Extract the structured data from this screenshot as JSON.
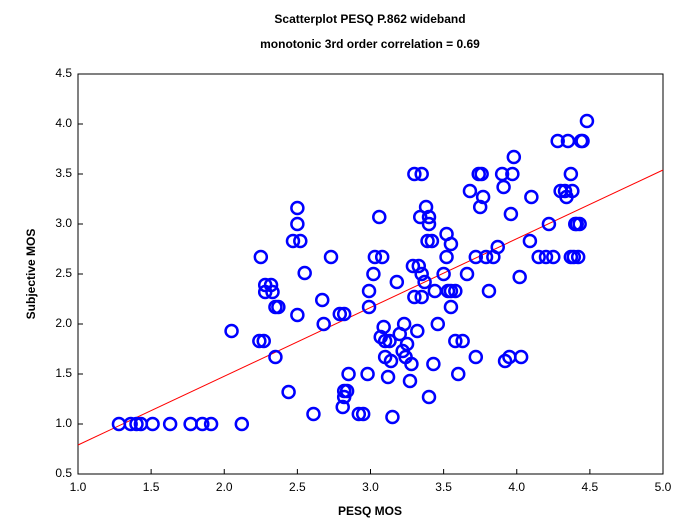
{
  "chart_data": {
    "type": "scatter",
    "title": "Scatterplot PESQ P.862 wideband",
    "subtitle": "monotonic 3rd order correlation = 0.69",
    "x_label": "PESQ  MOS",
    "y_label": "Subjective MOS",
    "color": "#0000ff",
    "x": [
      1.28,
      1.36,
      1.4,
      1.43,
      1.51,
      1.63,
      1.77,
      1.85,
      1.91,
      2.12,
      2.05,
      2.24,
      2.27,
      2.35,
      2.44,
      2.5,
      2.28,
      2.32,
      2.28,
      2.33,
      2.35,
      2.37,
      2.25,
      2.47,
      2.52,
      2.5,
      2.5,
      2.55,
      2.67,
      2.61,
      2.68,
      2.73,
      2.79,
      2.82,
      2.81,
      2.82,
      2.82,
      2.84,
      2.85,
      2.92,
      2.95,
      2.98,
      2.99,
      2.99,
      3.02,
      3.03,
      3.06,
      3.08,
      3.07,
      3.09,
      3.1,
      3.1,
      3.12,
      3.13,
      3.14,
      3.15,
      3.18,
      3.2,
      3.22,
      3.23,
      3.24,
      3.25,
      3.27,
      3.28,
      3.29,
      3.3,
      3.3,
      3.32,
      3.33,
      3.34,
      3.35,
      3.35,
      3.35,
      3.37,
      3.38,
      3.39,
      3.4,
      3.4,
      3.4,
      3.42,
      3.43,
      3.44,
      3.46,
      3.5,
      3.52,
      3.52,
      3.53,
      3.55,
      3.55,
      3.55,
      3.58,
      3.58,
      3.6,
      3.63,
      3.66,
      3.68,
      3.72,
      3.72,
      3.74,
      3.75,
      3.76,
      3.77,
      3.79,
      3.81,
      3.84,
      3.87,
      3.9,
      3.91,
      3.92,
      3.95,
      3.96,
      3.97,
      3.98,
      4.02,
      4.03,
      4.09,
      4.1,
      4.15,
      4.2,
      4.22,
      4.25,
      4.28,
      4.3,
      4.33,
      4.34,
      4.35,
      4.37,
      4.37,
      4.38,
      4.39,
      4.4,
      4.42,
      4.43,
      4.44,
      4.45,
      4.48,
      4.41
    ],
    "y": [
      1.0,
      1.0,
      1.0,
      1.0,
      1.0,
      1.0,
      1.0,
      1.0,
      1.0,
      1.0,
      1.93,
      1.83,
      1.83,
      1.67,
      1.32,
      2.09,
      2.39,
      2.39,
      2.32,
      2.32,
      2.17,
      2.17,
      2.67,
      2.83,
      2.83,
      3.0,
      3.16,
      2.51,
      2.24,
      1.1,
      2.0,
      2.67,
      2.1,
      2.1,
      1.17,
      1.27,
      1.33,
      1.33,
      1.5,
      1.1,
      1.1,
      1.5,
      2.17,
      2.33,
      2.5,
      2.67,
      3.07,
      2.67,
      1.87,
      1.97,
      1.67,
      1.83,
      1.47,
      1.83,
      1.63,
      1.07,
      2.42,
      1.9,
      1.73,
      2.0,
      1.67,
      1.8,
      1.43,
      1.6,
      2.58,
      3.5,
      2.27,
      1.93,
      2.58,
      3.07,
      2.5,
      2.27,
      3.5,
      2.42,
      3.17,
      2.83,
      3.0,
      3.07,
      1.27,
      2.83,
      1.6,
      2.33,
      2.0,
      2.5,
      2.9,
      2.67,
      2.33,
      2.8,
      2.17,
      2.33,
      2.33,
      1.83,
      1.5,
      1.83,
      2.5,
      3.33,
      1.67,
      2.67,
      3.5,
      3.17,
      3.5,
      3.27,
      2.67,
      2.33,
      2.67,
      2.77,
      3.5,
      3.37,
      1.63,
      1.67,
      3.1,
      3.5,
      3.67,
      2.47,
      1.67,
      2.83,
      3.27,
      2.67,
      2.67,
      3.0,
      2.67,
      3.83,
      3.33,
      3.33,
      3.27,
      3.83,
      2.67,
      3.5,
      3.33,
      2.67,
      3.0,
      2.67,
      3.0,
      3.83,
      3.83,
      4.03,
      3.0
    ],
    "fit_line": {
      "x": [
        1.0,
        5.0
      ],
      "y": [
        0.79,
        3.54
      ],
      "color": "#ff0000"
    },
    "xlim": [
      1.0,
      5.0
    ],
    "ylim": [
      0.5,
      4.5
    ],
    "xticks": [
      {
        "value": 1.0,
        "label": "1.0"
      },
      {
        "value": 1.5,
        "label": "1.5"
      },
      {
        "value": 2.0,
        "label": "2.0"
      },
      {
        "value": 2.5,
        "label": "2.5"
      },
      {
        "value": 3.0,
        "label": "3.0"
      },
      {
        "value": 3.5,
        "label": "3.5"
      },
      {
        "value": 4.0,
        "label": "4.0"
      },
      {
        "value": 4.5,
        "label": "4.5"
      },
      {
        "value": 5.0,
        "label": "5.0"
      }
    ],
    "yticks": [
      {
        "value": 0.5,
        "label": "0.5"
      },
      {
        "value": 1.0,
        "label": "1.0"
      },
      {
        "value": 1.5,
        "label": "1.5"
      },
      {
        "value": 2.0,
        "label": "2.0"
      },
      {
        "value": 2.5,
        "label": "2.5"
      },
      {
        "value": 3.0,
        "label": "3.0"
      },
      {
        "value": 3.5,
        "label": "3.5"
      },
      {
        "value": 4.0,
        "label": "4.0"
      },
      {
        "value": 4.5,
        "label": "4.5"
      }
    ]
  }
}
